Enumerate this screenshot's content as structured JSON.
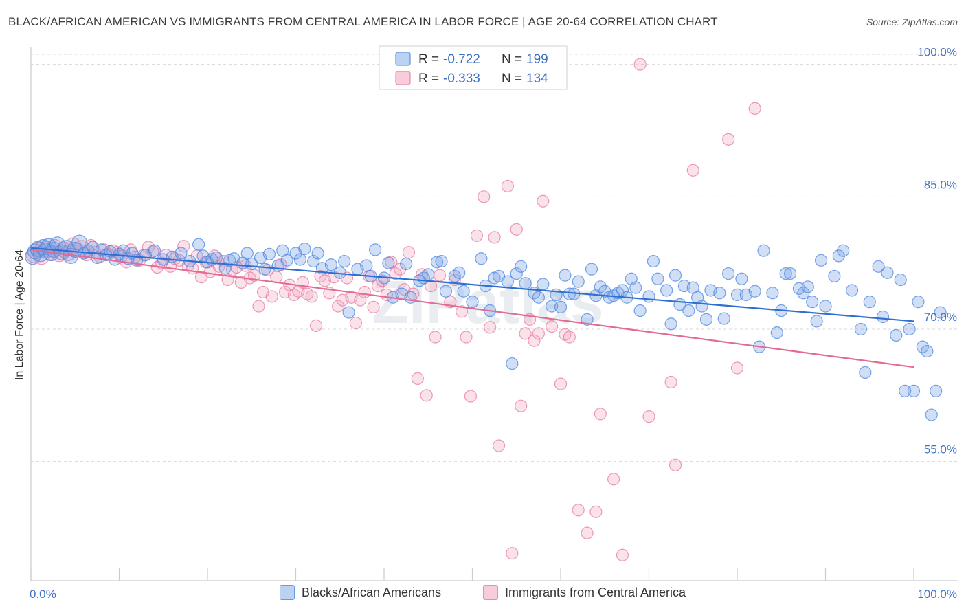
{
  "title": "BLACK/AFRICAN AMERICAN VS IMMIGRANTS FROM CENTRAL AMERICA IN LABOR FORCE | AGE 20-64 CORRELATION CHART",
  "source": "Source: ZipAtlas.com",
  "watermark": "ZIPatlas",
  "colors": {
    "blue": "#4a86e0",
    "blue_fill": "rgba(122,164,230,0.35)",
    "blue_line": "#2e6fcf",
    "pink": "#e8789c",
    "pink_fill": "rgba(240,160,190,0.30)",
    "pink_line": "#e36a94",
    "axis_text": "#4472c4",
    "grid": "#d8d8d8"
  },
  "legend": {
    "rows": [
      {
        "r_label": "R = ",
        "r_value": "-0.722",
        "n_label": "N = ",
        "n_value": "199"
      },
      {
        "r_label": "R = ",
        "r_value": "-0.333",
        "n_label": "N = ",
        "n_value": "134"
      }
    ]
  },
  "bottom_legend": [
    "Blacks/African Americans",
    "Immigrants from Central America"
  ],
  "chart_data": {
    "type": "scatter",
    "title": "BLACK/AFRICAN AMERICAN VS IMMIGRANTS FROM CENTRAL AMERICA IN LABOR FORCE | AGE 20-64 CORRELATION CHART",
    "xlabel": "",
    "ylabel": "In Labor Force | Age 20-64",
    "xlim": [
      0,
      100
    ],
    "ylim": [
      41.5,
      102
    ],
    "x_tick_labels": [
      "0.0%",
      "100.0%"
    ],
    "y_ticks": [
      55,
      70,
      85,
      100
    ],
    "y_tick_labels": [
      "55.0%",
      "70.0%",
      "85.0%",
      "100.0%"
    ],
    "grid": true,
    "legend_position": "top-center",
    "series": [
      {
        "name": "Blacks/African Americans",
        "R": -0.722,
        "N": 199,
        "trend": {
          "x": [
            0,
            100
          ],
          "y": [
            79.2,
            70.9
          ]
        },
        "points": [
          [
            0.2,
            78.2
          ],
          [
            0.5,
            78.8
          ],
          [
            0.8,
            79.1
          ],
          [
            1.1,
            78.5
          ],
          [
            1.4,
            79.3
          ],
          [
            1.7,
            78.9
          ],
          [
            2,
            79.4
          ],
          [
            2.3,
            78.6
          ],
          [
            2.6,
            79.0
          ],
          [
            3,
            79.6
          ],
          [
            3.5,
            78.7
          ],
          [
            4,
            79.2
          ],
          [
            4.5,
            78.3
          ],
          [
            5,
            79.0
          ],
          [
            5.5,
            79.8
          ],
          [
            6,
            78.6
          ],
          [
            6.5,
            78.9
          ],
          [
            7,
            79.3
          ],
          [
            7.5,
            78.1
          ],
          [
            8,
            79.0
          ],
          [
            8.5,
            78.4
          ],
          [
            9,
            78.8
          ],
          [
            9.5,
            77.9
          ],
          [
            10,
            78.5
          ],
          [
            10.5,
            78.9
          ],
          [
            11,
            78.0
          ],
          [
            11.5,
            78.6
          ],
          [
            12,
            77.8
          ],
          [
            13,
            78.4
          ],
          [
            14,
            78.9
          ],
          [
            15,
            77.9
          ],
          [
            16,
            78.2
          ],
          [
            17,
            78.6
          ],
          [
            18,
            77.7
          ],
          [
            19,
            79.6
          ],
          [
            19.5,
            78.3
          ],
          [
            20,
            77.6
          ],
          [
            20.5,
            77.9
          ],
          [
            21,
            78.1
          ],
          [
            22,
            76.9
          ],
          [
            22.5,
            77.8
          ],
          [
            23,
            78.0
          ],
          [
            24,
            77.5
          ],
          [
            24.5,
            78.6
          ],
          [
            25,
            77.4
          ],
          [
            26,
            78.1
          ],
          [
            26.5,
            76.8
          ],
          [
            27,
            78.5
          ],
          [
            28,
            77.2
          ],
          [
            28.5,
            78.9
          ],
          [
            29,
            77.8
          ],
          [
            30,
            78.6
          ],
          [
            30.5,
            77.9
          ],
          [
            31,
            79.1
          ],
          [
            32,
            77.7
          ],
          [
            32.5,
            78.6
          ],
          [
            33,
            76.9
          ],
          [
            34,
            77.3
          ],
          [
            35,
            76.4
          ],
          [
            35.5,
            77.7
          ],
          [
            36,
            71.9
          ],
          [
            37,
            76.8
          ],
          [
            38,
            77.2
          ],
          [
            38.5,
            76.0
          ],
          [
            39,
            79.0
          ],
          [
            40,
            75.8
          ],
          [
            40.5,
            77.5
          ],
          [
            41,
            73.6
          ],
          [
            42,
            74.0
          ],
          [
            42.5,
            77.4
          ],
          [
            43,
            73.6
          ],
          [
            44,
            75.5
          ],
          [
            44.5,
            75.8
          ],
          [
            45,
            76.2
          ],
          [
            46,
            77.6
          ],
          [
            46.5,
            77.7
          ],
          [
            47,
            74.3
          ],
          [
            48,
            76.0
          ],
          [
            48.5,
            76.4
          ],
          [
            49,
            74.3
          ],
          [
            50,
            73.1
          ],
          [
            51,
            78.0
          ],
          [
            51.5,
            74.9
          ],
          [
            52,
            72.1
          ],
          [
            52.5,
            75.8
          ],
          [
            53,
            76.0
          ],
          [
            54,
            75.4
          ],
          [
            54.5,
            66.1
          ],
          [
            55,
            76.3
          ],
          [
            55.5,
            77.1
          ],
          [
            56,
            75.2
          ],
          [
            57,
            74.1
          ],
          [
            57.5,
            73.6
          ],
          [
            58,
            75.1
          ],
          [
            59,
            72.6
          ],
          [
            59.5,
            73.9
          ],
          [
            60,
            72.5
          ],
          [
            60.5,
            76.1
          ],
          [
            61,
            74.0
          ],
          [
            61.5,
            74.0
          ],
          [
            62,
            75.4
          ],
          [
            63,
            71.1
          ],
          [
            63.5,
            76.8
          ],
          [
            64,
            73.8
          ],
          [
            64.5,
            74.8
          ],
          [
            65,
            74.3
          ],
          [
            65.5,
            73.6
          ],
          [
            66,
            73.8
          ],
          [
            66.5,
            74.1
          ],
          [
            67,
            74.4
          ],
          [
            67.5,
            73.6
          ],
          [
            68,
            75.7
          ],
          [
            68.5,
            74.7
          ],
          [
            69,
            72.1
          ],
          [
            70,
            73.7
          ],
          [
            70.5,
            77.7
          ],
          [
            71,
            75.7
          ],
          [
            72,
            74.4
          ],
          [
            72.5,
            70.6
          ],
          [
            73,
            76.1
          ],
          [
            73.5,
            72.8
          ],
          [
            74,
            74.9
          ],
          [
            74.5,
            72.1
          ],
          [
            75,
            74.7
          ],
          [
            75.5,
            73.6
          ],
          [
            76,
            72.6
          ],
          [
            76.5,
            71.1
          ],
          [
            77,
            74.4
          ],
          [
            78,
            74.1
          ],
          [
            78.5,
            71.2
          ],
          [
            79,
            76.3
          ],
          [
            80,
            73.9
          ],
          [
            80.5,
            75.7
          ],
          [
            81,
            73.9
          ],
          [
            82,
            74.3
          ],
          [
            82.5,
            68.0
          ],
          [
            83,
            78.9
          ],
          [
            84,
            74.1
          ],
          [
            84.5,
            69.6
          ],
          [
            85,
            72.1
          ],
          [
            85.5,
            76.3
          ],
          [
            86,
            76.3
          ],
          [
            87,
            74.6
          ],
          [
            87.5,
            74.1
          ],
          [
            88,
            74.8
          ],
          [
            88.5,
            73.1
          ],
          [
            89,
            70.9
          ],
          [
            89.5,
            77.8
          ],
          [
            90,
            72.6
          ],
          [
            91,
            76.0
          ],
          [
            91.5,
            78.3
          ],
          [
            92,
            78.9
          ],
          [
            93,
            74.4
          ],
          [
            94,
            70.0
          ],
          [
            94.5,
            65.1
          ],
          [
            95,
            73.1
          ],
          [
            96,
            77.1
          ],
          [
            96.5,
            71.4
          ],
          [
            97,
            76.4
          ],
          [
            98,
            69.3
          ],
          [
            98.5,
            75.6
          ],
          [
            99,
            63.0
          ],
          [
            99.5,
            70.0
          ],
          [
            100,
            63.0
          ],
          [
            100.5,
            73.1
          ],
          [
            101,
            68.0
          ],
          [
            101.5,
            67.5
          ],
          [
            102,
            60.3
          ],
          [
            102.5,
            63.0
          ],
          [
            103,
            71.9
          ]
        ]
      },
      {
        "name": "Immigrants from Central America",
        "R": -0.333,
        "N": 134,
        "trend": {
          "x": [
            0,
            100
          ],
          "y": [
            79.0,
            65.7
          ]
        },
        "points": [
          [
            0.3,
            78.4
          ],
          [
            0.8,
            79.0
          ],
          [
            1.2,
            78.2
          ],
          [
            1.7,
            79.1
          ],
          [
            2.2,
            78.7
          ],
          [
            2.7,
            79.3
          ],
          [
            3.2,
            78.5
          ],
          [
            3.7,
            79.0
          ],
          [
            4.2,
            78.6
          ],
          [
            4.8,
            79.5
          ],
          [
            5.3,
            78.9
          ],
          [
            5.8,
            79.2
          ],
          [
            6.3,
            78.4
          ],
          [
            6.8,
            79.5
          ],
          [
            7.3,
            78.7
          ],
          [
            7.8,
            78.2
          ],
          [
            8.3,
            79.0
          ],
          [
            8.8,
            78.5
          ],
          [
            9.3,
            78.9
          ],
          [
            9.8,
            78.7
          ],
          [
            10.3,
            78.3
          ],
          [
            10.8,
            77.6
          ],
          [
            11.3,
            79.0
          ],
          [
            11.8,
            78.2
          ],
          [
            12.3,
            77.8
          ],
          [
            12.8,
            78.4
          ],
          [
            13.3,
            79.3
          ],
          [
            13.8,
            78.8
          ],
          [
            14.3,
            77.0
          ],
          [
            14.8,
            77.5
          ],
          [
            15.3,
            78.4
          ],
          [
            15.8,
            77.1
          ],
          [
            16.3,
            78.0
          ],
          [
            16.8,
            77.8
          ],
          [
            17.3,
            79.4
          ],
          [
            17.8,
            77.2
          ],
          [
            18.3,
            76.9
          ],
          [
            18.8,
            78.3
          ],
          [
            19.3,
            75.9
          ],
          [
            19.8,
            77.6
          ],
          [
            20.3,
            76.5
          ],
          [
            20.8,
            78.3
          ],
          [
            21.3,
            77.1
          ],
          [
            21.8,
            77.7
          ],
          [
            22.3,
            75.6
          ],
          [
            22.8,
            76.7
          ],
          [
            23.3,
            77.0
          ],
          [
            23.8,
            75.3
          ],
          [
            24.3,
            77.2
          ],
          [
            24.8,
            75.8
          ],
          [
            25.3,
            76.1
          ],
          [
            25.8,
            72.6
          ],
          [
            26.3,
            74.2
          ],
          [
            26.8,
            76.7
          ],
          [
            27.3,
            73.7
          ],
          [
            27.8,
            75.9
          ],
          [
            28.3,
            77.3
          ],
          [
            28.8,
            74.2
          ],
          [
            29.3,
            75.0
          ],
          [
            29.8,
            73.9
          ],
          [
            30.3,
            74.3
          ],
          [
            30.8,
            75.3
          ],
          [
            31.3,
            74.0
          ],
          [
            31.8,
            73.7
          ],
          [
            32.3,
            70.4
          ],
          [
            32.8,
            76.0
          ],
          [
            33.3,
            75.5
          ],
          [
            33.8,
            74.1
          ],
          [
            34.3,
            75.9
          ],
          [
            34.8,
            72.6
          ],
          [
            35.3,
            73.3
          ],
          [
            35.8,
            75.8
          ],
          [
            36.3,
            73.6
          ],
          [
            36.8,
            70.7
          ],
          [
            37.3,
            73.3
          ],
          [
            37.8,
            74.2
          ],
          [
            38.3,
            76.0
          ],
          [
            38.8,
            72.5
          ],
          [
            39.3,
            74.9
          ],
          [
            39.8,
            75.5
          ],
          [
            40.3,
            73.9
          ],
          [
            40.8,
            77.6
          ],
          [
            41.3,
            76.3
          ],
          [
            41.8,
            76.8
          ],
          [
            42.3,
            74.5
          ],
          [
            42.8,
            78.7
          ],
          [
            43.3,
            74.0
          ],
          [
            43.8,
            64.4
          ],
          [
            44.3,
            76.2
          ],
          [
            44.8,
            62.5
          ],
          [
            45.3,
            74.9
          ],
          [
            45.8,
            69.1
          ],
          [
            46.3,
            76.1
          ],
          [
            47,
            100.0
          ],
          [
            47.5,
            73.1
          ],
          [
            48,
            75.6
          ],
          [
            48.8,
            72.0
          ],
          [
            49.3,
            69.1
          ],
          [
            49.8,
            62.4
          ],
          [
            50.5,
            80.6
          ],
          [
            51.3,
            85.0
          ],
          [
            52,
            70.2
          ],
          [
            52.5,
            80.4
          ],
          [
            53,
            56.8
          ],
          [
            54,
            86.2
          ],
          [
            54.5,
            44.6
          ],
          [
            55,
            81.3
          ],
          [
            55.5,
            61.3
          ],
          [
            56,
            69.5
          ],
          [
            56.5,
            71.1
          ],
          [
            57,
            68.7
          ],
          [
            57.5,
            69.5
          ],
          [
            58,
            84.5
          ],
          [
            59,
            70.3
          ],
          [
            60,
            63.8
          ],
          [
            60.5,
            69.4
          ],
          [
            61,
            69.1
          ],
          [
            62,
            49.5
          ],
          [
            63,
            46.9
          ],
          [
            64,
            49.3
          ],
          [
            64.5,
            60.4
          ],
          [
            66,
            53.0
          ],
          [
            67,
            44.4
          ],
          [
            69,
            100.0
          ],
          [
            70,
            60.1
          ],
          [
            72.5,
            64.0
          ],
          [
            73,
            54.6
          ],
          [
            75,
            88.0
          ],
          [
            79,
            91.5
          ],
          [
            80,
            65.6
          ],
          [
            82,
            95.0
          ]
        ]
      }
    ]
  }
}
